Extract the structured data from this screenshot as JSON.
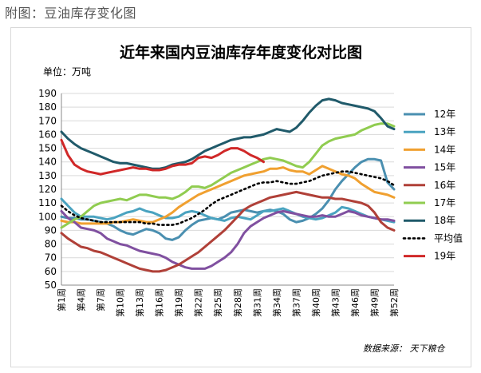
{
  "caption": "附图：豆油库存变化图",
  "chart_data": {
    "type": "line",
    "title": "近年来国内豆油库存年度变化对比图",
    "unit_label": "单位：万吨",
    "source": "数据来源：  天下粮仓",
    "ylim": [
      50,
      190
    ],
    "yticks": [
      50,
      60,
      70,
      80,
      90,
      100,
      110,
      120,
      130,
      140,
      150,
      160,
      170,
      180,
      190
    ],
    "x_count": 52,
    "x_tick_labels": [
      "第1周",
      "第4周",
      "第7周",
      "第10周",
      "第13周",
      "第16周",
      "第19周",
      "第22周",
      "第25周",
      "第28周",
      "第31周",
      "第34周",
      "第37周",
      "第40周",
      "第43周",
      "第46周",
      "第49周",
      "第52周"
    ],
    "x_tick_weeks": [
      1,
      4,
      7,
      10,
      13,
      16,
      19,
      22,
      25,
      28,
      31,
      34,
      37,
      40,
      43,
      46,
      49,
      52
    ],
    "series": [
      {
        "name": "12年",
        "color": "#4a8fb0",
        "values": [
          100,
          99,
          99,
          98,
          98,
          97,
          96,
          95,
          93,
          90,
          88,
          87,
          89,
          91,
          90,
          88,
          84,
          83,
          85,
          90,
          94,
          97,
          98,
          99,
          98,
          100,
          103,
          104,
          105,
          104,
          103,
          104,
          105,
          104,
          102,
          98,
          96,
          97,
          99,
          102,
          106,
          112,
          120,
          126,
          131,
          136,
          140,
          142,
          142,
          141,
          125,
          120
        ]
      },
      {
        "name": "13年",
        "color": "#4aa3c0",
        "values": [
          113,
          108,
          103,
          100,
          100,
          100,
          99,
          98,
          99,
          101,
          103,
          104,
          106,
          104,
          103,
          101,
          99,
          99,
          100,
          103,
          104,
          103,
          101,
          99,
          98,
          97,
          99,
          100,
          99,
          98,
          101,
          104,
          104,
          105,
          106,
          104,
          102,
          100,
          99,
          98,
          99,
          101,
          103,
          107,
          106,
          104,
          102,
          100,
          99,
          98,
          97,
          96
        ]
      },
      {
        "name": "14年",
        "color": "#f0a030",
        "values": [
          97,
          96,
          96,
          95,
          95,
          95,
          95,
          95,
          96,
          96,
          97,
          98,
          97,
          96,
          96,
          98,
          100,
          103,
          107,
          110,
          113,
          116,
          118,
          120,
          122,
          124,
          126,
          128,
          130,
          131,
          132,
          133,
          135,
          135,
          136,
          134,
          133,
          133,
          131,
          134,
          137,
          135,
          133,
          131,
          130,
          128,
          124,
          121,
          118,
          117,
          116,
          114
        ]
      },
      {
        "name": "15年",
        "color": "#8050a0",
        "values": [
          104,
          99,
          96,
          92,
          91,
          90,
          88,
          84,
          82,
          80,
          79,
          77,
          75,
          74,
          73,
          72,
          70,
          67,
          65,
          63,
          62,
          62,
          62,
          64,
          67,
          70,
          74,
          80,
          88,
          93,
          96,
          99,
          101,
          103,
          104,
          103,
          102,
          101,
          100,
          100,
          101,
          100,
          100,
          102,
          104,
          103,
          101,
          100,
          99,
          98,
          98,
          97
        ]
      },
      {
        "name": "16年",
        "color": "#b04038",
        "values": [
          88,
          84,
          81,
          78,
          77,
          75,
          74,
          72,
          70,
          68,
          66,
          64,
          62,
          61,
          60,
          60,
          61,
          63,
          65,
          68,
          71,
          74,
          78,
          82,
          86,
          90,
          95,
          100,
          105,
          108,
          110,
          112,
          114,
          115,
          116,
          117,
          118,
          117,
          116,
          115,
          114,
          114,
          113,
          113,
          112,
          111,
          110,
          108,
          103,
          96,
          92,
          90
        ]
      },
      {
        "name": "17年",
        "color": "#90cc50",
        "values": [
          92,
          95,
          98,
          100,
          104,
          108,
          110,
          111,
          112,
          113,
          112,
          114,
          116,
          116,
          115,
          114,
          114,
          113,
          115,
          118,
          122,
          122,
          121,
          123,
          126,
          129,
          132,
          134,
          136,
          138,
          140,
          142,
          143,
          142,
          141,
          139,
          137,
          136,
          140,
          146,
          152,
          155,
          157,
          158,
          159,
          160,
          163,
          165,
          167,
          168,
          168,
          166
        ]
      },
      {
        "name": "18年",
        "color": "#205a6a",
        "values": [
          162,
          157,
          153,
          150,
          148,
          146,
          144,
          142,
          140,
          139,
          139,
          138,
          137,
          136,
          135,
          135,
          136,
          138,
          139,
          140,
          142,
          145,
          148,
          150,
          152,
          154,
          156,
          157,
          158,
          158,
          159,
          160,
          162,
          164,
          163,
          162,
          165,
          170,
          176,
          181,
          185,
          186,
          185,
          183,
          182,
          181,
          180,
          179,
          177,
          172,
          166,
          164
        ]
      },
      {
        "name": "平均值",
        "color": "#000000",
        "dashed": true,
        "values": [
          108,
          104,
          101,
          99,
          98,
          97,
          96,
          96,
          96,
          96,
          96,
          96,
          96,
          95,
          95,
          94,
          94,
          94,
          95,
          97,
          99,
          102,
          105,
          109,
          112,
          114,
          116,
          118,
          120,
          122,
          124,
          125,
          125,
          126,
          125,
          124,
          124,
          125,
          126,
          128,
          130,
          131,
          132,
          133,
          133,
          132,
          131,
          130,
          129,
          128,
          126,
          123
        ]
      },
      {
        "name": "19年",
        "color": "#d02828",
        "values": [
          156,
          145,
          138,
          135,
          133,
          132,
          131,
          132,
          133,
          134,
          135,
          136,
          135,
          135,
          134,
          134,
          135,
          137,
          138,
          138,
          139,
          143,
          144,
          143,
          145,
          148,
          150,
          150,
          148,
          145,
          143,
          140
        ]
      }
    ]
  }
}
